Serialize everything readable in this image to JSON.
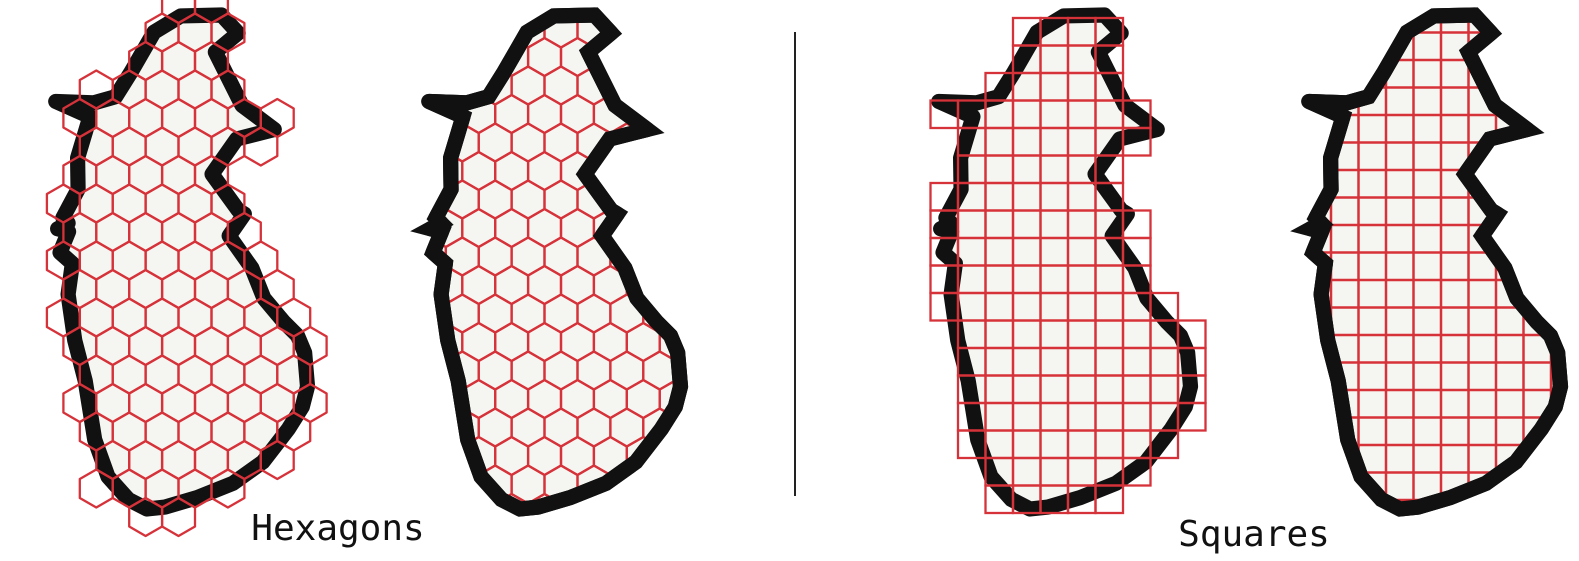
{
  "labels": {
    "hexagons": "Hexagons",
    "squares": "Squares"
  },
  "colors": {
    "grid_line": "#d6323a",
    "coastline": "#111111",
    "land_fill": "#f5f5f1",
    "background": "#ffffff"
  },
  "panels": [
    {
      "name": "hexagons-covering",
      "shape": "hexagon",
      "mode": "covering"
    },
    {
      "name": "hexagons-clipped",
      "shape": "hexagon",
      "mode": "clipped"
    },
    {
      "name": "squares-covering",
      "shape": "square",
      "mode": "covering"
    },
    {
      "name": "squares-clipped",
      "shape": "square",
      "mode": "clipped"
    }
  ]
}
